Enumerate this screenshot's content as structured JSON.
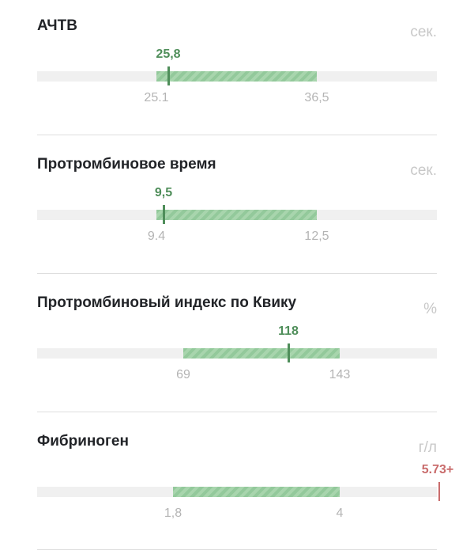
{
  "metrics": [
    {
      "name": "АЧТВ",
      "unit": "сек.",
      "value": "25,8",
      "value_num": 25.8,
      "ref_low": "25.1",
      "ref_high": "36,5",
      "ref_low_num": 25.1,
      "ref_high_num": 36.5,
      "status": "normal"
    },
    {
      "name": "Протромбиновое время",
      "unit": "сек.",
      "value": "9,5",
      "value_num": 9.5,
      "ref_low": "9.4",
      "ref_high": "12,5",
      "ref_low_num": 9.4,
      "ref_high_num": 12.5,
      "status": "normal"
    },
    {
      "name": "Протромбиновый индекс по Квику",
      "unit": "%",
      "value": "118",
      "value_num": 118,
      "ref_low": "69",
      "ref_high": "143",
      "ref_low_num": 69,
      "ref_high_num": 143,
      "status": "normal"
    },
    {
      "name": "Фибриноген",
      "unit": "г/л",
      "value": "5.73+",
      "value_num": 5.73,
      "ref_low": "1,8",
      "ref_high": "4",
      "ref_low_num": 1.8,
      "ref_high_num": 4,
      "status": "high"
    }
  ],
  "colors": {
    "normal": "#4f8e5a",
    "high": "#c96c6c",
    "range": "#a8d5ad",
    "track": "#f0f0f0"
  }
}
